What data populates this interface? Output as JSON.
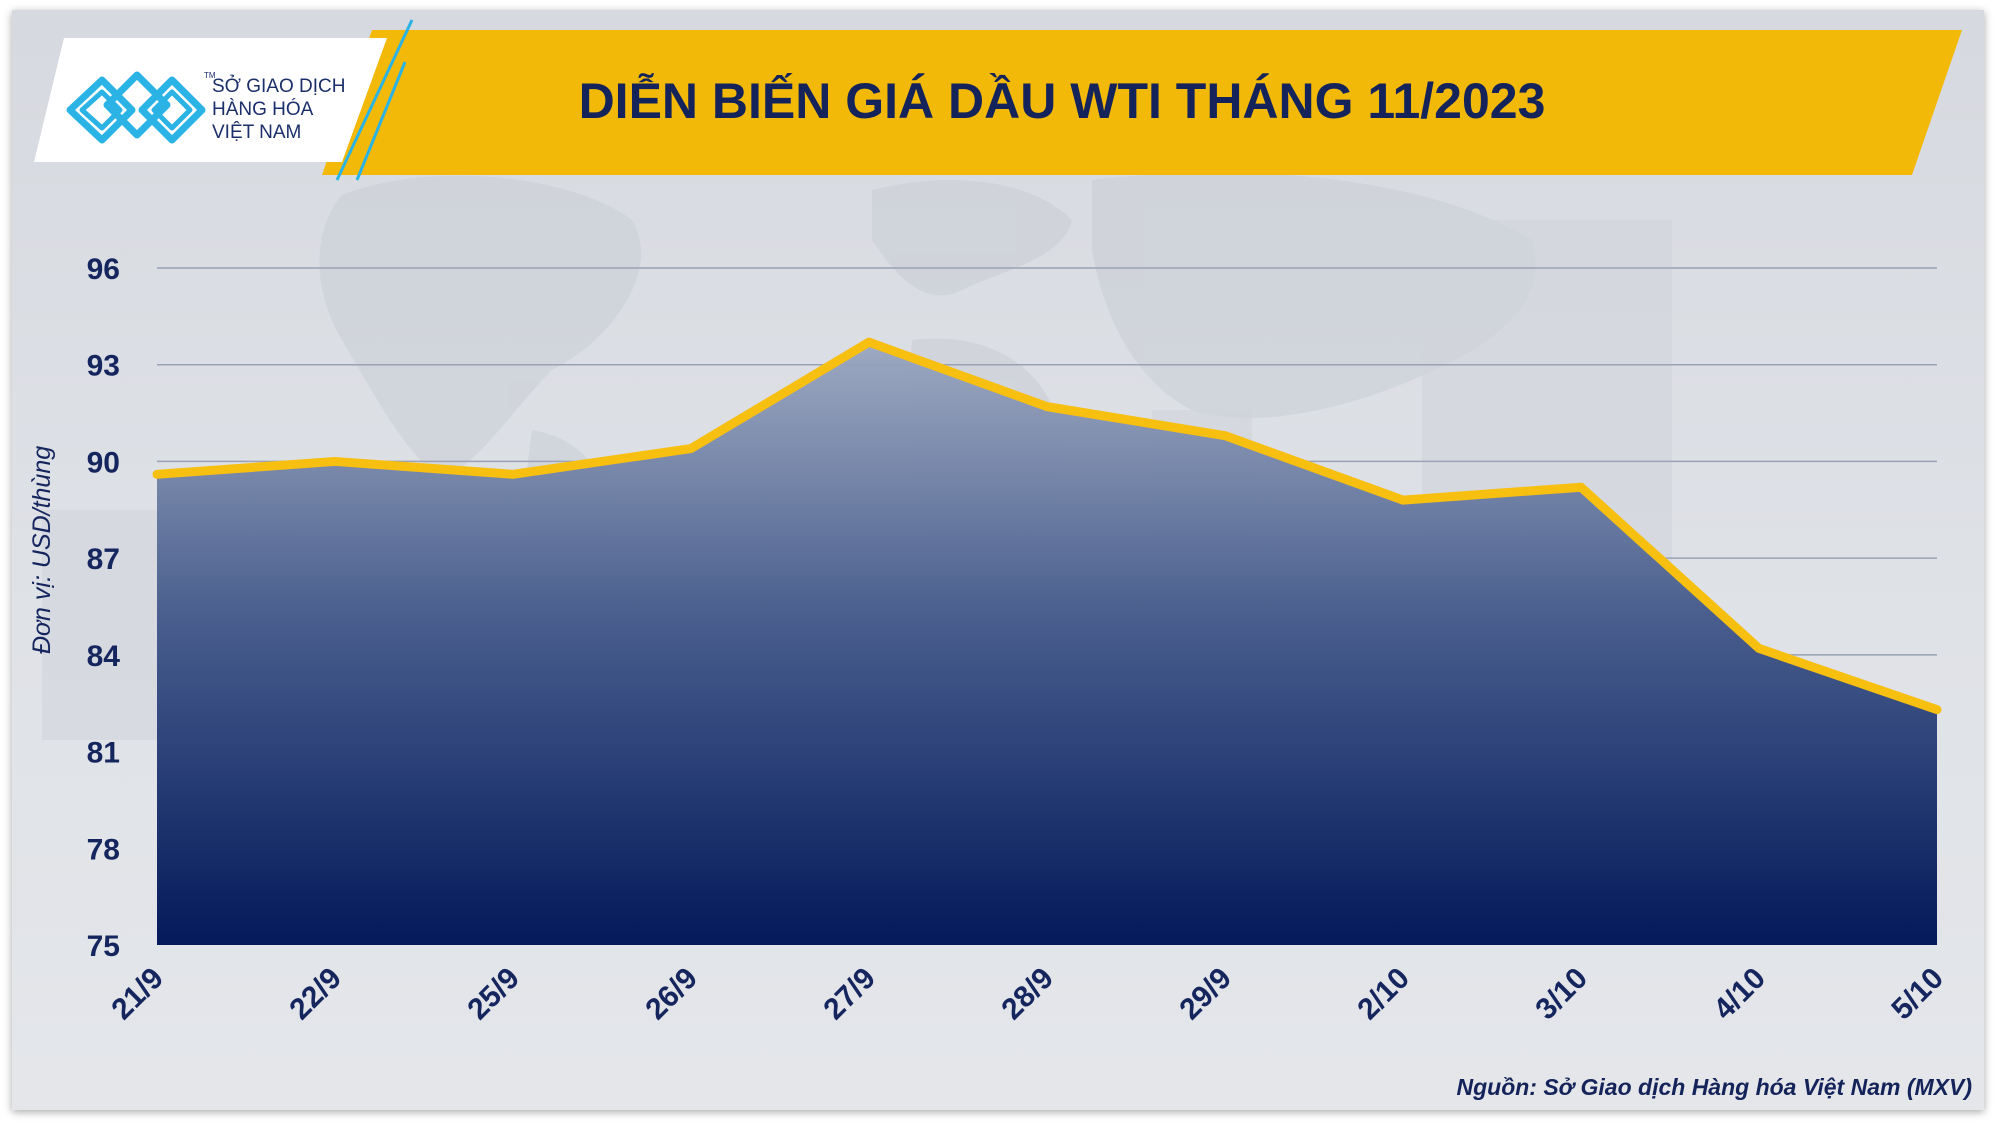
{
  "logo": {
    "line1": "SỞ GIAO DỊCH",
    "line2": "HÀNG HÓA",
    "line3": "VIỆT NAM",
    "tm": "TM"
  },
  "colors": {
    "banner": "#f3b908",
    "line": "#f7bf10",
    "area_top": "#98a4bd",
    "area_bottom": "#041d5c",
    "text": "#15255e",
    "logo_accent": "#2bb3e6"
  },
  "chart_data": {
    "type": "area",
    "title": "DIỄN BIẾN GIÁ DẦU WTI THÁNG 11/2023",
    "ylabel": "Đơn vị: USD/thùng",
    "xlabel": "",
    "categories": [
      "21/9",
      "22/9",
      "25/9",
      "26/9",
      "27/9",
      "28/9",
      "29/9",
      "2/10",
      "3/10",
      "4/10",
      "5/10"
    ],
    "values": [
      89.6,
      90.0,
      89.6,
      90.4,
      93.7,
      91.7,
      90.8,
      88.8,
      89.2,
      84.2,
      82.3
    ],
    "yticks": [
      75,
      78,
      81,
      84,
      87,
      90,
      93,
      96
    ],
    "ylim": [
      75,
      96
    ],
    "grid": true,
    "source": "Nguồn: Sở Giao dịch Hàng hóa Việt Nam (MXV)"
  }
}
